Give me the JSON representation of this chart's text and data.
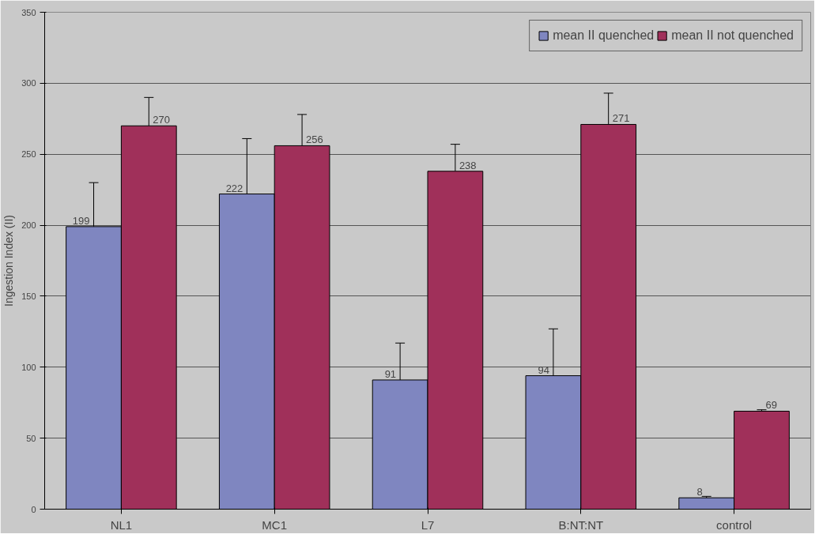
{
  "chart_data": {
    "type": "bar",
    "ylabel": "Ingestion Index (II)",
    "categories": [
      "NL1",
      "MC1",
      "L7",
      "B:NT:NT",
      "control"
    ],
    "series": [
      {
        "name": "mean II quenched",
        "color": "#7f86c0",
        "values": [
          199,
          222,
          91,
          94,
          8
        ],
        "errors": [
          31,
          39,
          26,
          33,
          1
        ]
      },
      {
        "name": "mean II not quenched",
        "color": "#a0305a",
        "values": [
          270,
          256,
          238,
          271,
          69
        ],
        "errors": [
          20,
          22,
          19,
          22,
          1
        ]
      }
    ],
    "ylim": [
      0,
      350
    ],
    "yticks": [
      0,
      50,
      100,
      150,
      200,
      250,
      300,
      350
    ],
    "grid": "y",
    "legend": "top right",
    "data_labels": true
  }
}
